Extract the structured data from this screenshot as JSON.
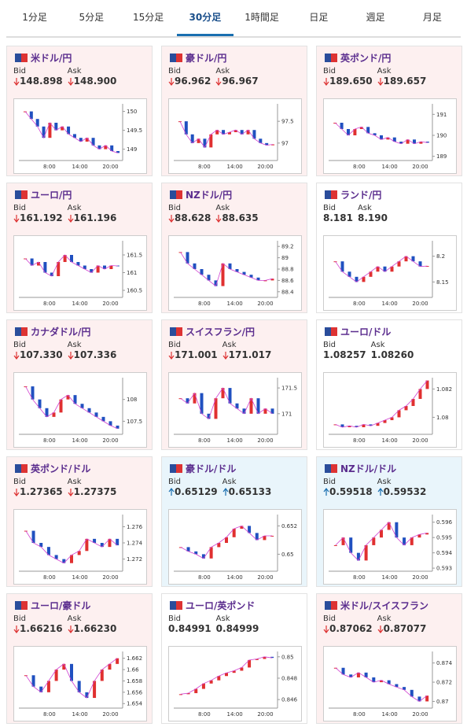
{
  "tabs": {
    "items": [
      "1分足",
      "5分足",
      "15分足",
      "30分足",
      "1時間足",
      "日足",
      "週足",
      "月足"
    ],
    "selected": 3
  },
  "bid_label": "Bid",
  "ask_label": "Ask",
  "xticks": [
    "8:00",
    "14:00",
    "20:00"
  ],
  "cards": [
    {
      "title": "米ドル/円",
      "bid": "148.898",
      "ask": "148.900",
      "direction": "down",
      "ylim": [
        148.7,
        150.2
      ],
      "yticks": [
        149,
        149.5,
        150
      ],
      "closes": [
        150.0,
        149.8,
        149.6,
        149.3,
        149.7,
        149.5,
        149.6,
        149.4,
        149.3,
        149.2,
        149.3,
        149.1,
        149.0,
        149.1,
        148.95,
        148.9
      ]
    },
    {
      "title": "豪ドル/円",
      "bid": "96.962",
      "ask": "96.967",
      "direction": "down",
      "ylim": [
        96.6,
        97.9
      ],
      "yticks": [
        97,
        97.5
      ],
      "closes": [
        97.5,
        97.2,
        97.0,
        97.1,
        96.9,
        97.2,
        97.3,
        97.2,
        97.25,
        97.3,
        97.2,
        97.3,
        97.1,
        97.0,
        96.95,
        96.97
      ]
    },
    {
      "title": "英ポンド/円",
      "bid": "189.650",
      "ask": "189.657",
      "direction": "down",
      "ylim": [
        188.8,
        191.5
      ],
      "yticks": [
        189,
        190,
        191
      ],
      "closes": [
        190.6,
        190.3,
        190.0,
        190.3,
        190.4,
        190.1,
        190.0,
        189.8,
        189.9,
        189.7,
        189.6,
        189.8,
        189.6,
        189.7,
        189.65
      ]
    },
    {
      "title": "ユーロ/円",
      "bid": "161.192",
      "ask": "161.196",
      "direction": "down",
      "ylim": [
        160.3,
        161.9
      ],
      "yticks": [
        160.5,
        161,
        161.5
      ],
      "closes": [
        161.4,
        161.2,
        161.3,
        161.0,
        160.9,
        161.3,
        161.5,
        161.3,
        161.2,
        161.1,
        161.0,
        161.2,
        161.1,
        161.2,
        161.19
      ]
    },
    {
      "title": "NZドル/円",
      "bid": "88.628",
      "ask": "88.635",
      "direction": "down",
      "ylim": [
        88.3,
        89.3
      ],
      "yticks": [
        88.4,
        88.6,
        88.8,
        89,
        89.2
      ],
      "closes": [
        89.1,
        88.9,
        88.8,
        88.7,
        88.6,
        88.5,
        88.9,
        88.8,
        88.75,
        88.7,
        88.65,
        88.6,
        88.6,
        88.63
      ]
    },
    {
      "title": "ランド/円",
      "bid": "8.181",
      "ask": "8.190",
      "direction": null,
      "ylim": [
        8.12,
        8.23
      ],
      "yticks": [
        8.15,
        8.2
      ],
      "closes": [
        8.19,
        8.17,
        8.16,
        8.15,
        8.16,
        8.17,
        8.18,
        8.17,
        8.18,
        8.19,
        8.2,
        8.19,
        8.18,
        8.181
      ]
    },
    {
      "title": "カナダドル/円",
      "bid": "107.330",
      "ask": "107.336",
      "direction": "down",
      "ylim": [
        107.2,
        108.5
      ],
      "yticks": [
        107.5,
        108
      ],
      "closes": [
        108.3,
        108.0,
        107.8,
        107.6,
        107.7,
        108.0,
        108.1,
        107.9,
        107.8,
        107.7,
        107.6,
        107.5,
        107.4,
        107.33
      ]
    },
    {
      "title": "スイスフラン/円",
      "bid": "171.001",
      "ask": "171.017",
      "direction": "down",
      "ylim": [
        170.6,
        171.7
      ],
      "yticks": [
        171,
        171.5
      ],
      "closes": [
        171.3,
        171.2,
        171.4,
        171.0,
        170.9,
        171.3,
        171.5,
        171.2,
        171.1,
        171.0,
        171.3,
        171.0,
        171.1,
        171.0
      ]
    },
    {
      "title": "ユーロ/ドル",
      "bid": "1.08257",
      "ask": "1.08260",
      "direction": null,
      "ylim": [
        1.0788,
        1.0828
      ],
      "yticks": [
        1.08,
        1.082
      ],
      "closes": [
        1.0795,
        1.0793,
        1.0794,
        1.0793,
        1.0795,
        1.0794,
        1.0796,
        1.0798,
        1.08,
        1.0805,
        1.0808,
        1.0813,
        1.082,
        1.0826
      ]
    },
    {
      "title": "英ポンド/ドル",
      "bid": "1.27365",
      "ask": "1.27375",
      "direction": "down",
      "ylim": [
        1.2705,
        1.2775
      ],
      "yticks": [
        1.272,
        1.274,
        1.276
      ],
      "closes": [
        1.2755,
        1.274,
        1.2735,
        1.2725,
        1.272,
        1.2715,
        1.2725,
        1.273,
        1.2745,
        1.274,
        1.2735,
        1.2745,
        1.2737
      ]
    },
    {
      "title": "豪ドル/ドル",
      "bid": "0.65129",
      "ask": "0.65133",
      "direction": "up",
      "ylim": [
        0.6488,
        0.6528
      ],
      "yticks": [
        0.65,
        0.652
      ],
      "closes": [
        0.6505,
        0.6502,
        0.65,
        0.6497,
        0.6505,
        0.6508,
        0.6512,
        0.6518,
        0.652,
        0.6515,
        0.651,
        0.6513,
        0.6513
      ]
    },
    {
      "title": "NZドル/ドル",
      "bid": "0.59518",
      "ask": "0.59532",
      "direction": "up",
      "ylim": [
        0.5928,
        0.5965
      ],
      "yticks": [
        0.593,
        0.594,
        0.595,
        0.596
      ],
      "closes": [
        0.5945,
        0.595,
        0.594,
        0.5935,
        0.5945,
        0.595,
        0.5955,
        0.596,
        0.595,
        0.5945,
        0.595,
        0.5952,
        0.5953
      ]
    },
    {
      "title": "ユーロ/豪ドル",
      "bid": "1.66216",
      "ask": "1.66230",
      "direction": "down",
      "ylim": [
        1.6532,
        1.6632
      ],
      "yticks": [
        1.654,
        1.656,
        1.658,
        1.66,
        1.662
      ],
      "closes": [
        1.659,
        1.657,
        1.656,
        1.658,
        1.66,
        1.661,
        1.658,
        1.656,
        1.655,
        1.658,
        1.66,
        1.661,
        1.662
      ]
    },
    {
      "title": "ユーロ/英ポンド",
      "bid": "0.84991",
      "ask": "0.84999",
      "direction": null,
      "ylim": [
        0.8452,
        0.8505
      ],
      "yticks": [
        0.846,
        0.848,
        0.85
      ],
      "closes": [
        0.8465,
        0.8466,
        0.847,
        0.8475,
        0.8478,
        0.8482,
        0.8485,
        0.8487,
        0.849,
        0.8497,
        0.8498,
        0.85,
        0.8499
      ]
    },
    {
      "title": "米ドル/スイスフラン",
      "bid": "0.87062",
      "ask": "0.87077",
      "direction": "down",
      "ylim": [
        0.8693,
        0.8752
      ],
      "yticks": [
        0.87,
        0.872,
        0.874
      ],
      "closes": [
        0.8735,
        0.8728,
        0.8725,
        0.873,
        0.8725,
        0.872,
        0.8722,
        0.8718,
        0.8715,
        0.8712,
        0.8705,
        0.87,
        0.8706
      ]
    }
  ]
}
